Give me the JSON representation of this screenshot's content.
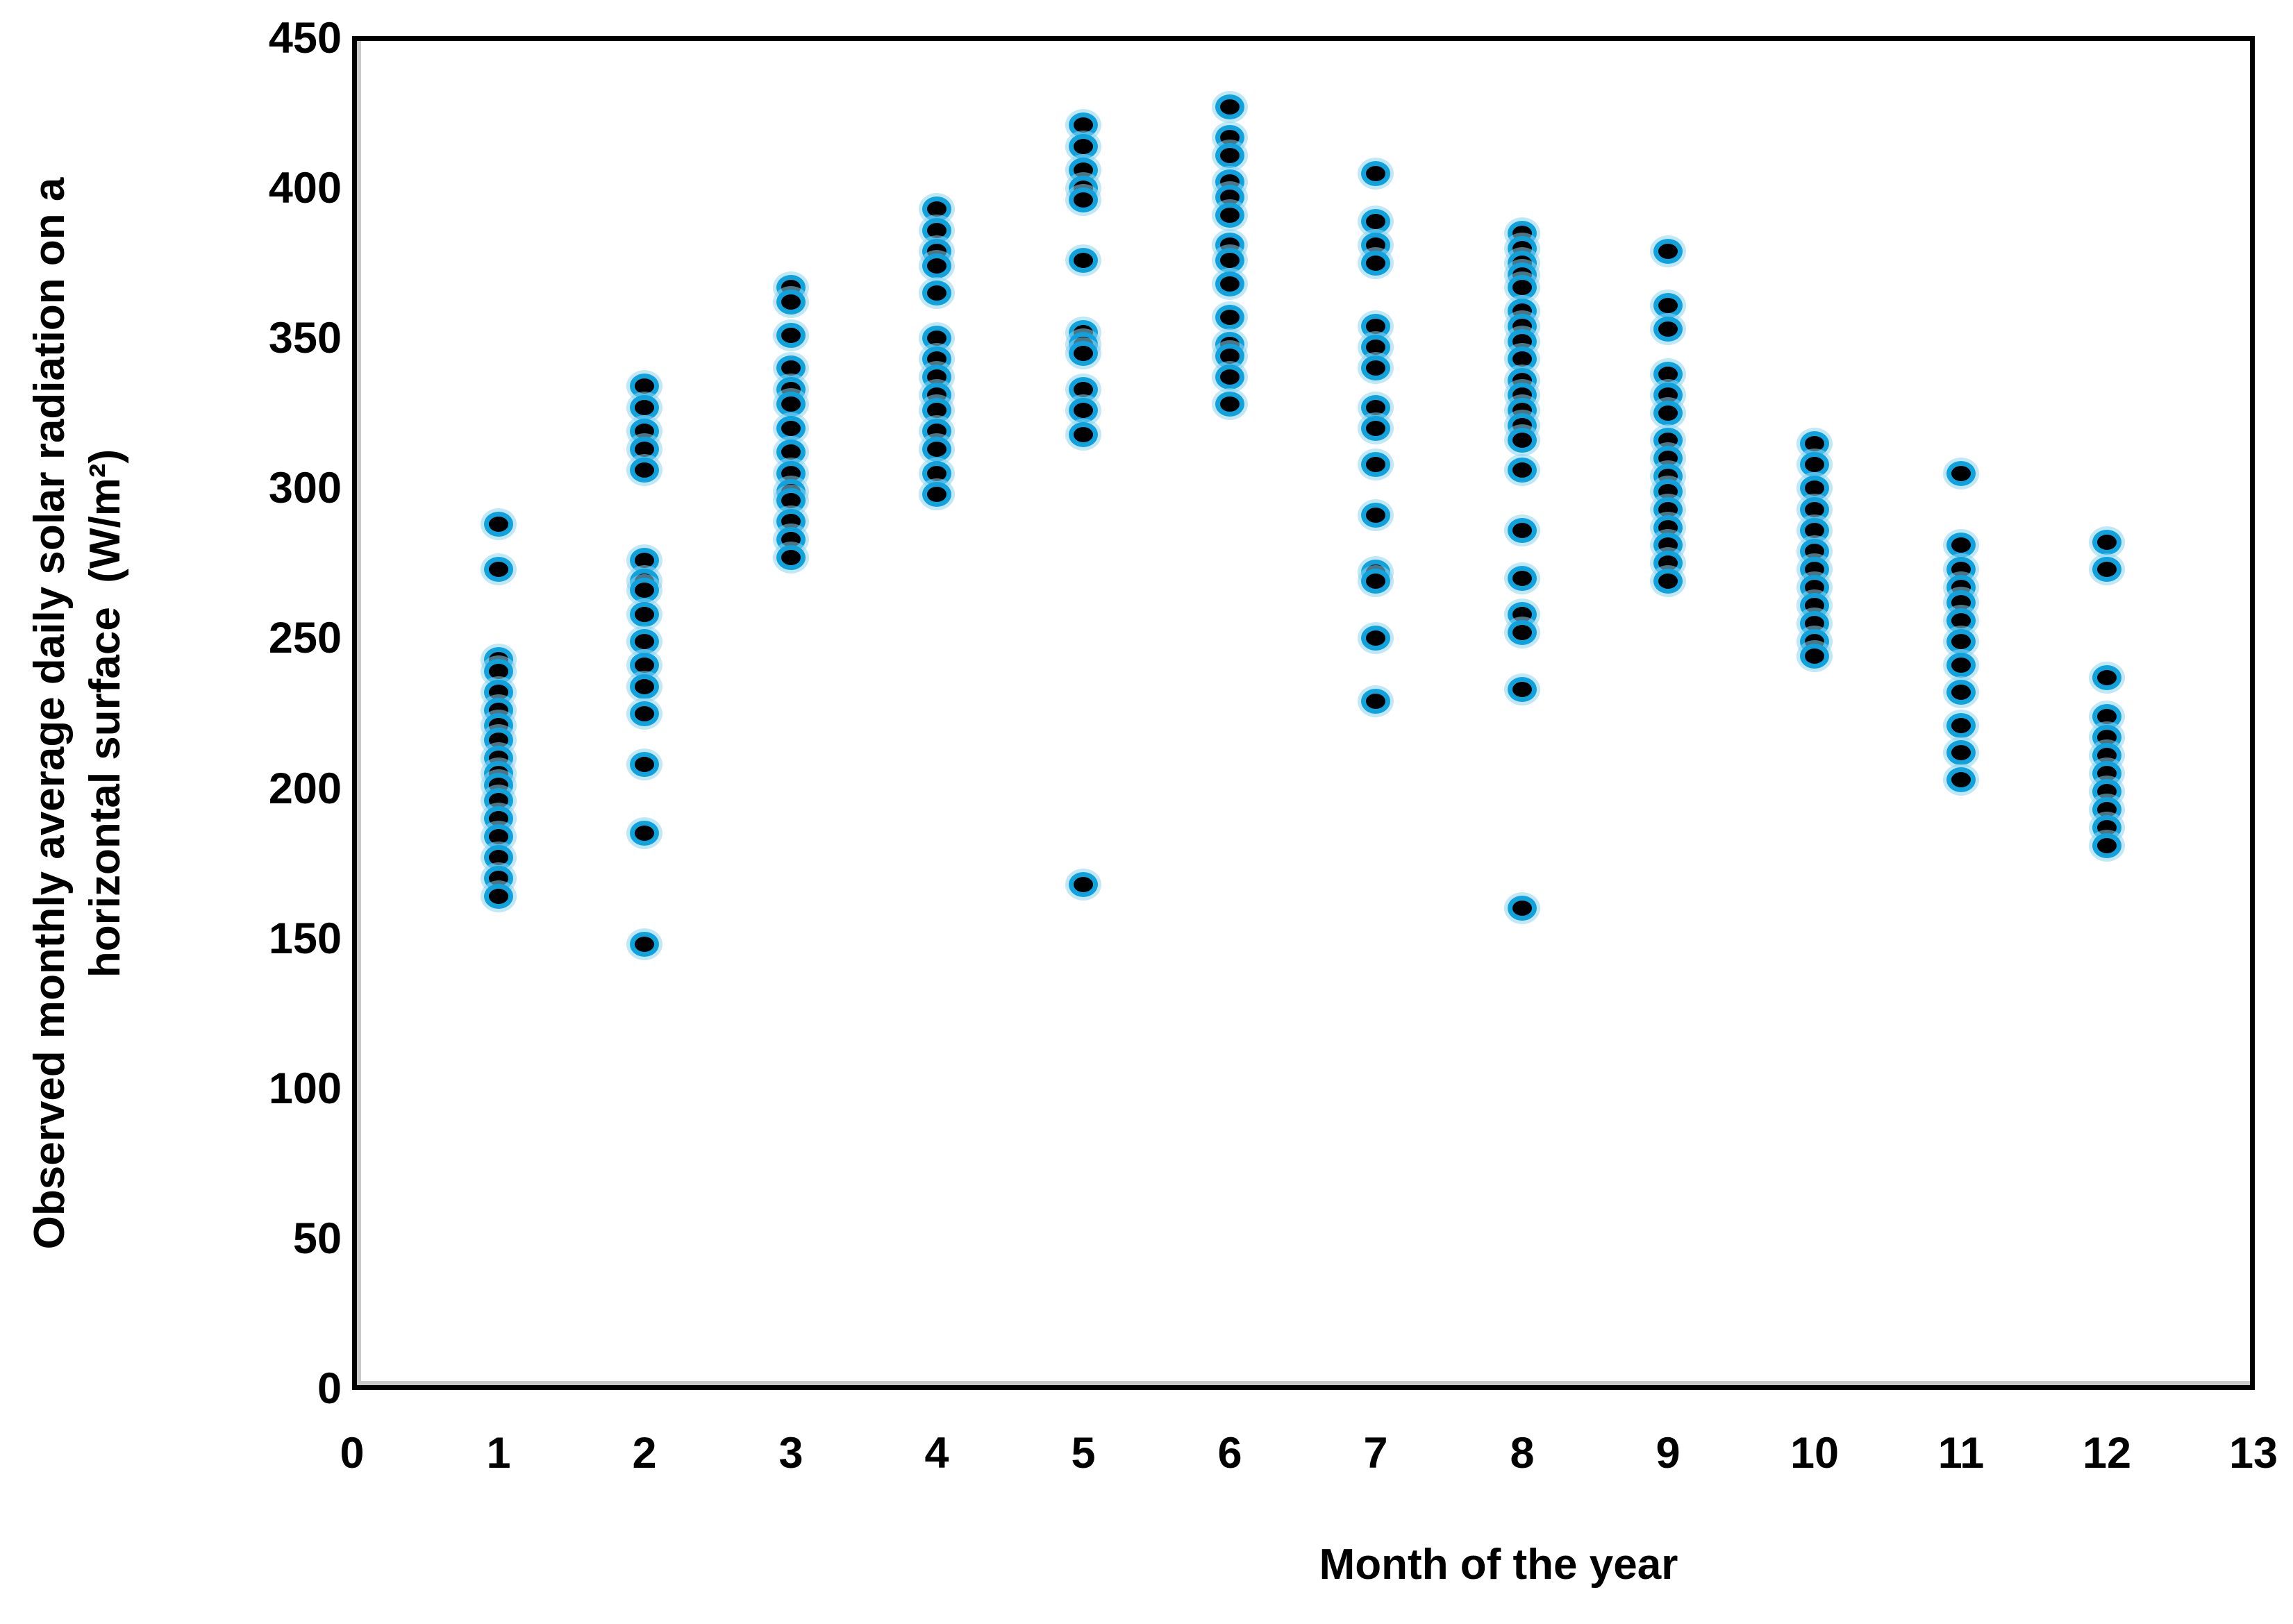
{
  "figure": {
    "background": "#ffffff",
    "border_color": "#000000"
  },
  "chart_data": {
    "type": "scatter",
    "title": "",
    "xlabel": "Month of the year",
    "ylabel": "Observed monthly average daily solar radiation on a horizontal surface (W/m²)",
    "ylabel_line1": "Observed monthly average daily solar radiation on a",
    "ylabel_line2": "horizontal surface  (W/m²)",
    "xlim": [
      0,
      13
    ],
    "ylim": [
      0,
      450
    ],
    "x_ticks": [
      0,
      1,
      2,
      3,
      4,
      5,
      6,
      7,
      8,
      9,
      10,
      11,
      12,
      13
    ],
    "y_ticks": [
      0,
      50,
      100,
      150,
      200,
      250,
      300,
      350,
      400,
      450
    ],
    "grid": false,
    "legend": false,
    "marker": {
      "shape": "circle",
      "fill": "#000000",
      "ring": "#0fa2dd",
      "halo": "#8fd4ef"
    },
    "series": [
      {
        "month": 1,
        "values": [
          288,
          273,
          243,
          239,
          232,
          226,
          221,
          216,
          210,
          205,
          201,
          196,
          190,
          184,
          177,
          170,
          164
        ]
      },
      {
        "month": 2,
        "values": [
          334,
          327,
          319,
          313,
          306,
          276,
          269,
          266,
          258,
          249,
          241,
          234,
          225,
          208,
          185,
          148
        ]
      },
      {
        "month": 3,
        "values": [
          367,
          362,
          351,
          340,
          333,
          328,
          320,
          312,
          305,
          299,
          296,
          289,
          283,
          277
        ]
      },
      {
        "month": 4,
        "values": [
          393,
          386,
          379,
          374,
          365,
          350,
          343,
          337,
          331,
          326,
          319,
          313,
          305,
          298
        ]
      },
      {
        "month": 5,
        "values": [
          421,
          414,
          406,
          400,
          396,
          376,
          352,
          348,
          345,
          333,
          326,
          318,
          168
        ]
      },
      {
        "month": 6,
        "values": [
          427,
          417,
          411,
          402,
          397,
          391,
          381,
          376,
          368,
          357,
          348,
          344,
          337,
          328
        ]
      },
      {
        "month": 7,
        "values": [
          405,
          389,
          381,
          375,
          354,
          347,
          340,
          327,
          320,
          308,
          291,
          272,
          269,
          250,
          229
        ]
      },
      {
        "month": 8,
        "values": [
          385,
          380,
          375,
          371,
          367,
          359,
          354,
          349,
          343,
          336,
          331,
          326,
          321,
          316,
          306,
          286,
          270,
          258,
          252,
          233,
          160
        ]
      },
      {
        "month": 9,
        "values": [
          379,
          361,
          353,
          338,
          331,
          325,
          316,
          310,
          304,
          299,
          293,
          287,
          281,
          275,
          269
        ]
      },
      {
        "month": 10,
        "values": [
          315,
          308,
          300,
          293,
          286,
          279,
          273,
          267,
          261,
          255,
          249,
          244
        ]
      },
      {
        "month": 11,
        "values": [
          305,
          281,
          273,
          267,
          262,
          256,
          249,
          241,
          232,
          221,
          212,
          203
        ]
      },
      {
        "month": 12,
        "values": [
          282,
          273,
          237,
          224,
          217,
          211,
          205,
          199,
          193,
          187,
          181
        ]
      }
    ]
  }
}
